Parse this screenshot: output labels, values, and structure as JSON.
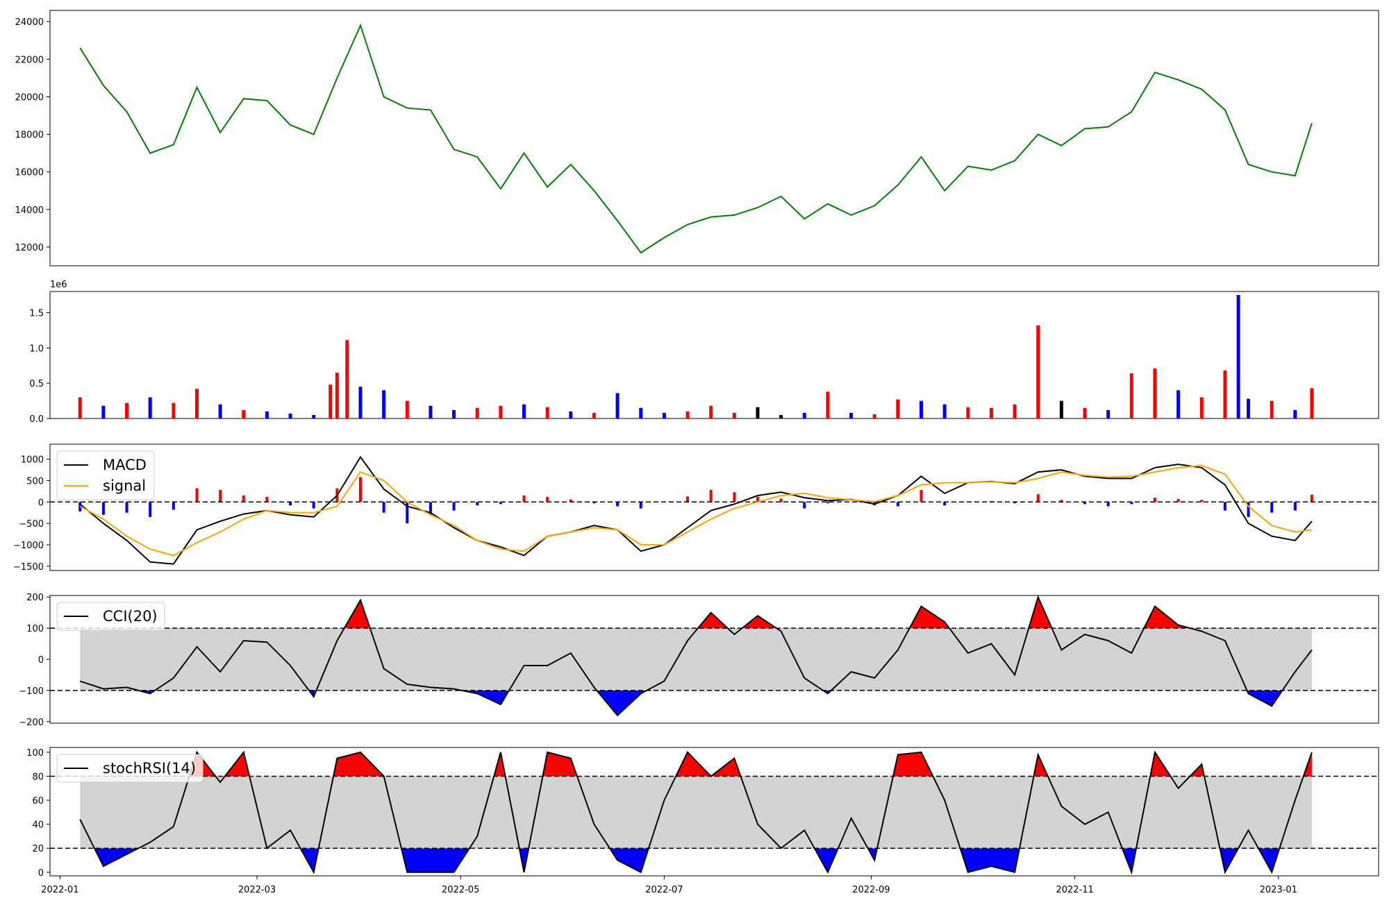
{
  "chart_data": [
    {
      "type": "line",
      "name_key": "price",
      "x_start": "2022-01-07",
      "x_end": "2023-01-11",
      "y_ticks": [
        "12000",
        "14000",
        "16000",
        "18000",
        "20000",
        "22000",
        "24000"
      ],
      "ylim": [
        11000,
        24600
      ],
      "color": "#008000",
      "x": [
        "2022-01-07",
        "2022-01-14",
        "2022-01-21",
        "2022-01-28",
        "2022-02-04",
        "2022-02-11",
        "2022-02-18",
        "2022-02-25",
        "2022-03-04",
        "2022-03-11",
        "2022-03-18",
        "2022-03-25",
        "2022-04-01",
        "2022-04-08",
        "2022-04-15",
        "2022-04-22",
        "2022-04-29",
        "2022-05-06",
        "2022-05-13",
        "2022-05-20",
        "2022-05-27",
        "2022-06-03",
        "2022-06-10",
        "2022-06-17",
        "2022-06-24",
        "2022-07-01",
        "2022-07-08",
        "2022-07-15",
        "2022-07-22",
        "2022-07-29",
        "2022-08-05",
        "2022-08-12",
        "2022-08-19",
        "2022-08-26",
        "2022-09-02",
        "2022-09-09",
        "2022-09-16",
        "2022-09-23",
        "2022-09-30",
        "2022-10-07",
        "2022-10-14",
        "2022-10-21",
        "2022-10-28",
        "2022-11-04",
        "2022-11-11",
        "2022-11-18",
        "2022-11-25",
        "2022-12-02",
        "2022-12-09",
        "2022-12-16",
        "2022-12-23",
        "2022-12-30",
        "2023-01-06",
        "2023-01-11"
      ],
      "values": [
        22600,
        20600,
        19200,
        17000,
        17450,
        20500,
        18100,
        19900,
        19800,
        18500,
        18000,
        21000,
        23800,
        20000,
        19400,
        19300,
        17200,
        16800,
        15100,
        17000,
        15200,
        16400,
        15000,
        13400,
        11700,
        12500,
        13200,
        13600,
        13700,
        14100,
        14700,
        13500,
        14300,
        13700,
        14200,
        15300,
        16800,
        15000,
        16300,
        16100,
        16600,
        18000,
        17400,
        18300,
        18400,
        19200,
        21300,
        20900,
        20400,
        19300,
        16400,
        16000,
        15800,
        18600
      ]
    },
    {
      "type": "bar",
      "name_key": "volume",
      "multiplier": "1e6",
      "y_ticks": [
        "0.0",
        "0.5",
        "1.0",
        "1.5"
      ],
      "ylim": [
        0,
        1.8
      ],
      "colors": {
        "up": "#ff0000",
        "down": "#0000ff",
        "flat": "#000000"
      },
      "x": [
        "2022-01-07",
        "2022-01-14",
        "2022-01-21",
        "2022-01-28",
        "2022-02-04",
        "2022-02-11",
        "2022-02-18",
        "2022-02-25",
        "2022-03-04",
        "2022-03-11",
        "2022-03-18",
        "2022-03-23",
        "2022-03-25",
        "2022-03-28",
        "2022-04-01",
        "2022-04-08",
        "2022-04-15",
        "2022-04-22",
        "2022-04-29",
        "2022-05-06",
        "2022-05-13",
        "2022-05-20",
        "2022-05-27",
        "2022-06-03",
        "2022-06-10",
        "2022-06-17",
        "2022-06-24",
        "2022-07-01",
        "2022-07-08",
        "2022-07-15",
        "2022-07-22",
        "2022-07-29",
        "2022-08-05",
        "2022-08-12",
        "2022-08-19",
        "2022-08-26",
        "2022-09-02",
        "2022-09-09",
        "2022-09-16",
        "2022-09-23",
        "2022-09-30",
        "2022-10-07",
        "2022-10-14",
        "2022-10-21",
        "2022-10-28",
        "2022-11-04",
        "2022-11-11",
        "2022-11-18",
        "2022-11-25",
        "2022-12-02",
        "2022-12-09",
        "2022-12-16",
        "2022-12-20",
        "2022-12-23",
        "2022-12-30",
        "2023-01-06",
        "2023-01-11"
      ],
      "values": [
        0.3,
        0.18,
        0.22,
        0.3,
        0.22,
        0.42,
        0.2,
        0.12,
        0.1,
        0.07,
        0.05,
        0.48,
        0.65,
        1.11,
        0.45,
        0.4,
        0.25,
        0.18,
        0.12,
        0.15,
        0.18,
        0.2,
        0.16,
        0.1,
        0.08,
        0.36,
        0.15,
        0.08,
        0.1,
        0.18,
        0.08,
        0.16,
        0.05,
        0.08,
        0.38,
        0.08,
        0.06,
        0.27,
        0.25,
        0.2,
        0.16,
        0.15,
        0.2,
        1.32,
        0.25,
        0.15,
        0.12,
        0.64,
        0.71,
        0.4,
        0.3,
        0.68,
        1.75,
        0.28,
        0.25,
        0.12,
        0.43
      ],
      "dirs": [
        "up",
        "down",
        "up",
        "down",
        "up",
        "up",
        "down",
        "up",
        "down",
        "down",
        "down",
        "up",
        "up",
        "up",
        "down",
        "down",
        "up",
        "down",
        "down",
        "up",
        "up",
        "down",
        "up",
        "down",
        "up",
        "down",
        "down",
        "down",
        "up",
        "up",
        "up",
        "flat",
        "flat",
        "down",
        "up",
        "down",
        "up",
        "up",
        "down",
        "down",
        "up",
        "up",
        "up",
        "up",
        "flat",
        "up",
        "down",
        "up",
        "up",
        "down",
        "up",
        "up",
        "down",
        "down",
        "up",
        "down",
        "up"
      ]
    },
    {
      "type": "line",
      "name_key": "macd",
      "y_ticks": [
        "−1500",
        "−1000",
        "−500",
        "0",
        "500",
        "1000"
      ],
      "ylim": [
        -1600,
        1350
      ],
      "legend": [
        "MACD",
        "signal"
      ],
      "legend_position": "top-left",
      "x": [
        "2022-01-07",
        "2022-01-14",
        "2022-01-21",
        "2022-01-28",
        "2022-02-04",
        "2022-02-11",
        "2022-02-18",
        "2022-02-25",
        "2022-03-04",
        "2022-03-11",
        "2022-03-18",
        "2022-03-25",
        "2022-04-01",
        "2022-04-08",
        "2022-04-15",
        "2022-04-22",
        "2022-04-29",
        "2022-05-06",
        "2022-05-13",
        "2022-05-20",
        "2022-05-27",
        "2022-06-03",
        "2022-06-10",
        "2022-06-17",
        "2022-06-24",
        "2022-07-01",
        "2022-07-08",
        "2022-07-15",
        "2022-07-22",
        "2022-07-29",
        "2022-08-05",
        "2022-08-12",
        "2022-08-19",
        "2022-08-26",
        "2022-09-02",
        "2022-09-09",
        "2022-09-16",
        "2022-09-23",
        "2022-09-30",
        "2022-10-07",
        "2022-10-14",
        "2022-10-21",
        "2022-10-28",
        "2022-11-04",
        "2022-11-11",
        "2022-11-18",
        "2022-11-25",
        "2022-12-02",
        "2022-12-09",
        "2022-12-16",
        "2022-12-23",
        "2022-12-30",
        "2023-01-06",
        "2023-01-11"
      ],
      "series": [
        {
          "name": "MACD",
          "color": "#000000",
          "values": [
            -50,
            -500,
            -900,
            -1400,
            -1450,
            -650,
            -450,
            -280,
            -200,
            -300,
            -350,
            150,
            1050,
            300,
            -100,
            -250,
            -600,
            -900,
            -1050,
            -1250,
            -800,
            -700,
            -550,
            -650,
            -1150,
            -1000,
            -600,
            -200,
            -50,
            150,
            230,
            100,
            30,
            60,
            -50,
            150,
            600,
            200,
            450,
            480,
            430,
            700,
            750,
            600,
            550,
            550,
            800,
            880,
            800,
            400,
            -500,
            -800,
            -900,
            -450
          ]
        },
        {
          "name": "signal",
          "color": "#ffa500",
          "values": [
            -100,
            -400,
            -800,
            -1100,
            -1250,
            -950,
            -700,
            -400,
            -200,
            -250,
            -250,
            -100,
            700,
            500,
            0,
            -300,
            -550,
            -900,
            -1100,
            -1150,
            -800,
            -700,
            -600,
            -650,
            -1000,
            -1000,
            -700,
            -400,
            -150,
            0,
            150,
            200,
            100,
            50,
            10,
            150,
            400,
            450,
            450,
            470,
            450,
            550,
            700,
            620,
            580,
            600,
            700,
            800,
            850,
            650,
            -100,
            -550,
            -700,
            -650
          ]
        },
        {
          "name": "hist",
          "type": "bar",
          "values": [
            -220,
            -300,
            -250,
            -350,
            -180,
            320,
            280,
            150,
            120,
            -80,
            -150,
            320,
            580,
            -250,
            -500,
            -300,
            -200,
            -80,
            -50,
            150,
            120,
            60,
            -30,
            -100,
            -150,
            0,
            130,
            280,
            230,
            120,
            80,
            -150,
            -30,
            0,
            -80,
            -100,
            280,
            -80,
            0,
            20,
            -30,
            180,
            50,
            -50,
            -100,
            -50,
            100,
            70,
            50,
            -200,
            -350,
            -250,
            -200,
            170
          ]
        }
      ]
    },
    {
      "type": "area",
      "name_key": "cci",
      "y_ticks": [
        "−200",
        "−100",
        "0",
        "100",
        "200"
      ],
      "ylim": [
        -205,
        205
      ],
      "legend": [
        "CCI(20)"
      ],
      "legend_position": "top-left",
      "bands": [
        -100,
        100
      ],
      "x": [
        "2022-01-07",
        "2022-01-14",
        "2022-01-21",
        "2022-01-28",
        "2022-02-04",
        "2022-02-11",
        "2022-02-18",
        "2022-02-25",
        "2022-03-04",
        "2022-03-11",
        "2022-03-18",
        "2022-03-25",
        "2022-04-01",
        "2022-04-08",
        "2022-04-15",
        "2022-04-22",
        "2022-04-29",
        "2022-05-06",
        "2022-05-13",
        "2022-05-20",
        "2022-05-27",
        "2022-06-03",
        "2022-06-10",
        "2022-06-17",
        "2022-06-24",
        "2022-07-01",
        "2022-07-08",
        "2022-07-15",
        "2022-07-22",
        "2022-07-29",
        "2022-08-05",
        "2022-08-12",
        "2022-08-19",
        "2022-08-26",
        "2022-09-02",
        "2022-09-09",
        "2022-09-16",
        "2022-09-23",
        "2022-09-30",
        "2022-10-07",
        "2022-10-14",
        "2022-10-21",
        "2022-10-28",
        "2022-11-04",
        "2022-11-11",
        "2022-11-18",
        "2022-11-25",
        "2022-12-02",
        "2022-12-09",
        "2022-12-16",
        "2022-12-23",
        "2022-12-30",
        "2023-01-06",
        "2023-01-11"
      ],
      "values": [
        -70,
        -95,
        -90,
        -110,
        -60,
        40,
        -40,
        60,
        55,
        -20,
        -120,
        60,
        190,
        -30,
        -80,
        -90,
        -95,
        -110,
        -145,
        -20,
        -20,
        20,
        -90,
        -180,
        -110,
        -70,
        60,
        150,
        80,
        140,
        90,
        -60,
        -110,
        -40,
        -60,
        30,
        170,
        120,
        20,
        50,
        -50,
        200,
        30,
        80,
        60,
        20,
        170,
        110,
        90,
        60,
        -110,
        -150,
        -40,
        30
      ]
    },
    {
      "type": "area",
      "name_key": "stochrsi",
      "y_ticks": [
        "0",
        "20",
        "40",
        "60",
        "80",
        "100"
      ],
      "ylim": [
        -3,
        104
      ],
      "legend": [
        "stochRSI(14)"
      ],
      "legend_position": "top-left",
      "bands": [
        20,
        80
      ],
      "x_ticks": [
        "2022-01",
        "2022-03",
        "2022-05",
        "2022-07",
        "2022-09",
        "2022-11",
        "2023-01"
      ],
      "x": [
        "2022-01-07",
        "2022-01-14",
        "2022-01-21",
        "2022-01-28",
        "2022-02-04",
        "2022-02-11",
        "2022-02-18",
        "2022-02-25",
        "2022-03-04",
        "2022-03-11",
        "2022-03-18",
        "2022-03-25",
        "2022-04-01",
        "2022-04-08",
        "2022-04-15",
        "2022-04-22",
        "2022-04-29",
        "2022-05-06",
        "2022-05-13",
        "2022-05-20",
        "2022-05-27",
        "2022-06-03",
        "2022-06-10",
        "2022-06-17",
        "2022-06-24",
        "2022-07-01",
        "2022-07-08",
        "2022-07-15",
        "2022-07-22",
        "2022-07-29",
        "2022-08-05",
        "2022-08-12",
        "2022-08-19",
        "2022-08-26",
        "2022-09-02",
        "2022-09-09",
        "2022-09-16",
        "2022-09-23",
        "2022-09-30",
        "2022-10-07",
        "2022-10-14",
        "2022-10-21",
        "2022-10-28",
        "2022-11-04",
        "2022-11-11",
        "2022-11-18",
        "2022-11-25",
        "2022-12-02",
        "2022-12-09",
        "2022-12-16",
        "2022-12-23",
        "2022-12-30",
        "2023-01-06",
        "2023-01-11"
      ],
      "values": [
        44,
        5,
        15,
        25,
        38,
        100,
        75,
        100,
        20,
        35,
        0,
        95,
        100,
        80,
        0,
        0,
        0,
        30,
        100,
        0,
        100,
        95,
        40,
        10,
        0,
        60,
        100,
        80,
        95,
        40,
        20,
        35,
        0,
        45,
        10,
        98,
        100,
        60,
        0,
        5,
        0,
        98,
        55,
        40,
        50,
        0,
        100,
        70,
        90,
        0,
        35,
        0,
        60,
        100
      ]
    }
  ]
}
